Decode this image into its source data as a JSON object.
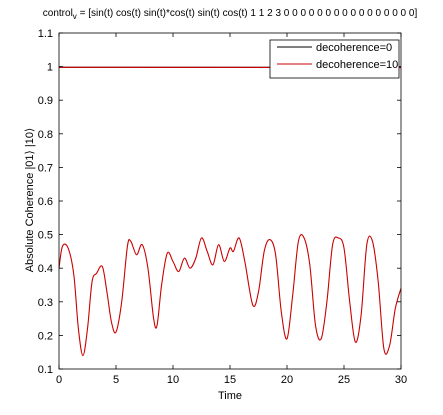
{
  "chart_data": {
    "type": "line",
    "title": {
      "prefix": "control",
      "subscript": "v",
      "suffix": " = [sin(t) cos(t) sin(t)*cos(t) sin(t) cos(t) 1 1 2 3 0 0 0 0 0 0 0 0 0 0 0 0 0 0 0 0]"
    },
    "xlabel": "Time",
    "ylabel": "Absolute Coherence |01⟩ |10⟩",
    "xlim": [
      0,
      30
    ],
    "ylim": [
      0.1,
      1.1
    ],
    "x_ticks": [
      0,
      5,
      10,
      15,
      20,
      25,
      30
    ],
    "x_tick_labels": [
      "0",
      "5",
      "10",
      "15",
      "20",
      "25",
      "30"
    ],
    "y_ticks": [
      0.1,
      0.2,
      0.3,
      0.4,
      0.5,
      0.6,
      0.7,
      0.8,
      0.9,
      1.0,
      1.1
    ],
    "y_tick_labels": [
      "0.1",
      "0.2",
      "0.3",
      "0.4",
      "0.5",
      "0.6",
      "0.7",
      "0.8",
      "0.9",
      "1",
      "1.1"
    ],
    "grid": false,
    "legend": {
      "placement": "top-right"
    },
    "series": [
      {
        "name": "decoherence=0",
        "color": "#000000",
        "x": [
          0,
          30
        ],
        "y": [
          0.998,
          0.998
        ]
      },
      {
        "name": "decoherence=10",
        "color": "#cc0000",
        "x": [
          0,
          30
        ],
        "y": [
          0.998,
          0.997
        ]
      },
      {
        "name": "",
        "color": "#cc0000",
        "x": [
          0,
          0.3,
          0.8,
          1.3,
          1.7,
          2.1,
          2.5,
          2.9,
          3.3,
          3.8,
          4.2,
          4.6,
          5.0,
          5.5,
          6.0,
          6.3,
          6.8,
          7.3,
          7.8,
          8.3,
          8.6,
          9.0,
          9.5,
          10.0,
          10.5,
          11.0,
          11.5,
          12.0,
          12.5,
          13.0,
          13.5,
          14.0,
          14.5,
          15.0,
          15.3,
          15.8,
          16.3,
          17.0,
          17.5,
          18.0,
          18.5,
          19.0,
          19.5,
          20.0,
          20.5,
          21.0,
          21.5,
          22.0,
          22.5,
          23.0,
          23.5,
          24.0,
          24.5,
          25.0,
          25.5,
          26.0,
          26.5,
          27.0,
          27.5,
          28.0,
          28.5,
          29.0,
          29.5,
          30.0
        ],
        "y": [
          0.4,
          0.465,
          0.46,
          0.38,
          0.22,
          0.14,
          0.22,
          0.36,
          0.385,
          0.405,
          0.33,
          0.24,
          0.21,
          0.3,
          0.465,
          0.48,
          0.44,
          0.47,
          0.4,
          0.25,
          0.23,
          0.35,
          0.445,
          0.42,
          0.39,
          0.43,
          0.4,
          0.43,
          0.49,
          0.45,
          0.41,
          0.47,
          0.42,
          0.46,
          0.45,
          0.49,
          0.42,
          0.29,
          0.33,
          0.45,
          0.485,
          0.44,
          0.27,
          0.19,
          0.32,
          0.48,
          0.49,
          0.41,
          0.23,
          0.19,
          0.3,
          0.47,
          0.49,
          0.46,
          0.3,
          0.18,
          0.26,
          0.47,
          0.48,
          0.36,
          0.16,
          0.17,
          0.28,
          0.34
        ]
      }
    ]
  }
}
